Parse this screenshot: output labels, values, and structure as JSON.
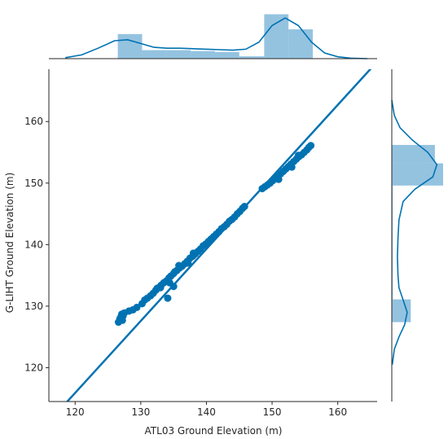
{
  "chart_data": {
    "type": "scatter",
    "subtype": "jointplot",
    "xlabel": "ATL03 Ground Elevation (m)",
    "ylabel": "G-LIHT Ground Elevation (m)",
    "xlim": [
      116,
      166
    ],
    "ylim": [
      114.5,
      168.5
    ],
    "xticks": [
      120,
      130,
      140,
      150,
      160
    ],
    "yticks": [
      120,
      130,
      140,
      150,
      160
    ],
    "grid": false,
    "color": "#0072b2",
    "fill_color": "#5ba3d0",
    "regression": {
      "intercept": -24.5,
      "slope": 1.17
    },
    "points": [
      [
        126.6,
        127.4
      ],
      [
        126.8,
        127.9
      ],
      [
        127.0,
        128.3
      ],
      [
        127.1,
        128.7
      ],
      [
        127.3,
        128.4
      ],
      [
        127.5,
        128.9
      ],
      [
        127.2,
        127.7
      ],
      [
        126.9,
        128.1
      ],
      [
        128.2,
        129.2
      ],
      [
        128.8,
        129.4
      ],
      [
        129.4,
        129.8
      ],
      [
        130.2,
        130.4
      ],
      [
        130.6,
        131.0
      ],
      [
        131.0,
        131.3
      ],
      [
        131.5,
        131.7
      ],
      [
        131.9,
        132.1
      ],
      [
        132.3,
        132.6
      ],
      [
        132.7,
        133.0
      ],
      [
        133.1,
        133.4
      ],
      [
        133.5,
        133.8
      ],
      [
        133.9,
        134.1
      ],
      [
        134.3,
        134.6
      ],
      [
        134.6,
        134.9
      ],
      [
        135.0,
        135.3
      ],
      [
        135.2,
        135.6
      ],
      [
        135.5,
        135.8
      ],
      [
        135.9,
        136.2
      ],
      [
        136.3,
        136.5
      ],
      [
        136.7,
        136.9
      ],
      [
        137.1,
        137.3
      ],
      [
        137.5,
        137.8
      ],
      [
        137.9,
        138.1
      ],
      [
        138.3,
        138.5
      ],
      [
        138.7,
        138.9
      ],
      [
        139.1,
        139.3
      ],
      [
        139.5,
        139.8
      ],
      [
        139.9,
        140.1
      ],
      [
        140.3,
        140.5
      ],
      [
        140.7,
        140.9
      ],
      [
        141.1,
        141.3
      ],
      [
        141.5,
        141.7
      ],
      [
        141.9,
        142.1
      ],
      [
        142.3,
        142.6
      ],
      [
        142.7,
        142.9
      ],
      [
        143.1,
        143.3
      ],
      [
        143.5,
        143.8
      ],
      [
        143.9,
        144.1
      ],
      [
        144.3,
        144.5
      ],
      [
        144.7,
        145.0
      ],
      [
        145.1,
        145.4
      ],
      [
        145.5,
        145.9
      ],
      [
        145.8,
        146.2
      ],
      [
        134.1,
        131.3
      ],
      [
        135.0,
        133.2
      ],
      [
        134.4,
        133.8
      ],
      [
        133.0,
        133.0
      ],
      [
        132.5,
        132.9
      ],
      [
        135.8,
        136.6
      ],
      [
        137.2,
        137.0
      ],
      [
        138.0,
        138.6
      ],
      [
        148.5,
        149.1
      ],
      [
        148.9,
        149.4
      ],
      [
        149.3,
        149.7
      ],
      [
        149.7,
        150.0
      ],
      [
        150.1,
        150.4
      ],
      [
        150.5,
        150.7
      ],
      [
        150.9,
        151.1
      ],
      [
        151.3,
        151.5
      ],
      [
        151.7,
        151.9
      ],
      [
        152.1,
        152.3
      ],
      [
        152.5,
        152.7
      ],
      [
        152.9,
        153.1
      ],
      [
        153.3,
        153.5
      ],
      [
        153.7,
        153.9
      ],
      [
        154.1,
        154.3
      ],
      [
        154.5,
        154.6
      ],
      [
        154.9,
        155.0
      ],
      [
        155.3,
        155.4
      ],
      [
        155.6,
        155.8
      ],
      [
        155.9,
        156.1
      ],
      [
        153.0,
        152.6
      ],
      [
        151.0,
        150.6
      ],
      [
        154.0,
        154.5
      ]
    ],
    "marginal_x": {
      "bins": [
        [
          126.5,
          130.2
        ],
        [
          130.2,
          133.9
        ],
        [
          133.9,
          137.6
        ],
        [
          137.6,
          141.3
        ],
        [
          141.3,
          145.0
        ],
        [
          145.0,
          148.8
        ],
        [
          148.8,
          152.5
        ],
        [
          152.5,
          156.2
        ]
      ],
      "density": [
        0.52,
        0.18,
        0.18,
        0.16,
        0.14,
        0.05,
        0.94,
        0.62
      ],
      "kde_x": [
        118.5,
        121,
        123.5,
        126,
        128,
        130,
        132,
        134,
        136,
        138,
        140,
        142,
        144,
        146,
        148,
        150,
        152,
        154,
        156,
        158,
        160,
        162,
        164.5
      ],
      "kde_y": [
        0.02,
        0.08,
        0.22,
        0.38,
        0.4,
        0.32,
        0.24,
        0.22,
        0.22,
        0.21,
        0.2,
        0.19,
        0.18,
        0.2,
        0.35,
        0.7,
        0.86,
        0.7,
        0.35,
        0.12,
        0.04,
        0.01,
        0.0
      ]
    },
    "marginal_y": {
      "bins": [
        [
          127.4,
          131.1
        ],
        [
          131.1,
          134.8
        ],
        [
          134.8,
          138.5
        ],
        [
          138.5,
          142.2
        ],
        [
          142.2,
          145.9
        ],
        [
          145.9,
          149.6
        ],
        [
          149.6,
          153.2
        ],
        [
          153.2,
          156.2
        ]
      ],
      "density": [
        0.37,
        0.02,
        0.02,
        0.02,
        0.02,
        0.02,
        1.0,
        0.84
      ],
      "kde_y": [
        120.5,
        123,
        125,
        127,
        129,
        131,
        133,
        135,
        138,
        141,
        144,
        147,
        149,
        151,
        153,
        155,
        157,
        159,
        161,
        163.5
      ],
      "kde_x": [
        0.01,
        0.05,
        0.14,
        0.25,
        0.3,
        0.22,
        0.14,
        0.12,
        0.11,
        0.12,
        0.14,
        0.22,
        0.45,
        0.8,
        0.88,
        0.7,
        0.4,
        0.16,
        0.05,
        0.0
      ]
    }
  }
}
